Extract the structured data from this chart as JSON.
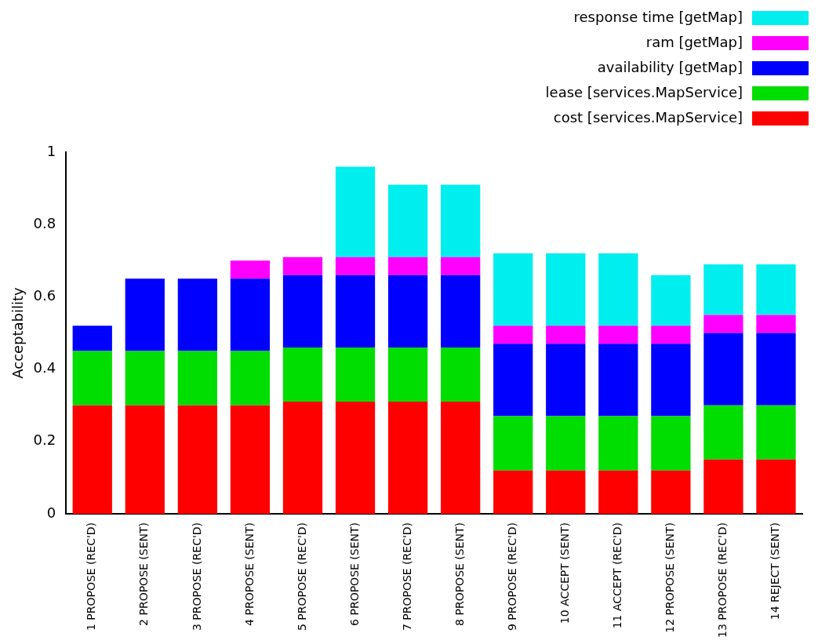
{
  "chart_data": {
    "type": "bar",
    "stacked": true,
    "ylabel": "Acceptability",
    "legend": "top right",
    "grid": false,
    "categories": [
      "1 PROPOSE (REC'D)",
      "2 PROPOSE (SENT)",
      "3 PROPOSE (REC'D)",
      "4 PROPOSE (SENT)",
      "5 PROPOSE (REC'D)",
      "6 PROPOSE (SENT)",
      "7 PROPOSE (REC'D)",
      "8 PROPOSE (SENT)",
      "9 PROPOSE (REC'D)",
      "10 ACCEPT (SENT)",
      "11 ACCEPT (REC'D)",
      "12 PROPOSE (SENT)",
      "13 PROPOSE (REC'D)",
      "14 REJECT (SENT)"
    ],
    "ylim": [
      0,
      1
    ],
    "yticks": [
      0,
      0.2,
      0.4,
      0.6,
      0.8,
      1
    ],
    "series": [
      {
        "name": "cost [services.MapService]",
        "color": "#ff0000",
        "values": [
          0.3,
          0.3,
          0.3,
          0.3,
          0.31,
          0.31,
          0.31,
          0.31,
          0.12,
          0.12,
          0.12,
          0.12,
          0.15,
          0.15
        ]
      },
      {
        "name": "lease [services.MapService]",
        "color": "#00dd00",
        "values": [
          0.15,
          0.15,
          0.15,
          0.15,
          0.15,
          0.15,
          0.15,
          0.15,
          0.15,
          0.15,
          0.15,
          0.15,
          0.15,
          0.15
        ]
      },
      {
        "name": "availability [getMap]",
        "color": "#0000ff",
        "values": [
          0.07,
          0.2,
          0.2,
          0.2,
          0.2,
          0.2,
          0.2,
          0.2,
          0.2,
          0.2,
          0.2,
          0.2,
          0.2,
          0.2
        ]
      },
      {
        "name": "ram [getMap]",
        "color": "#ff00ff",
        "values": [
          0,
          0,
          0,
          0.05,
          0.05,
          0.05,
          0.05,
          0.05,
          0.05,
          0.05,
          0.05,
          0.05,
          0.05,
          0.05
        ]
      },
      {
        "name": "response time [getMap]",
        "color": "#00eeee",
        "values": [
          0,
          0,
          0,
          0,
          0,
          0.25,
          0.2,
          0.2,
          0.2,
          0.2,
          0.2,
          0.14,
          0.14,
          0.14
        ]
      }
    ]
  }
}
